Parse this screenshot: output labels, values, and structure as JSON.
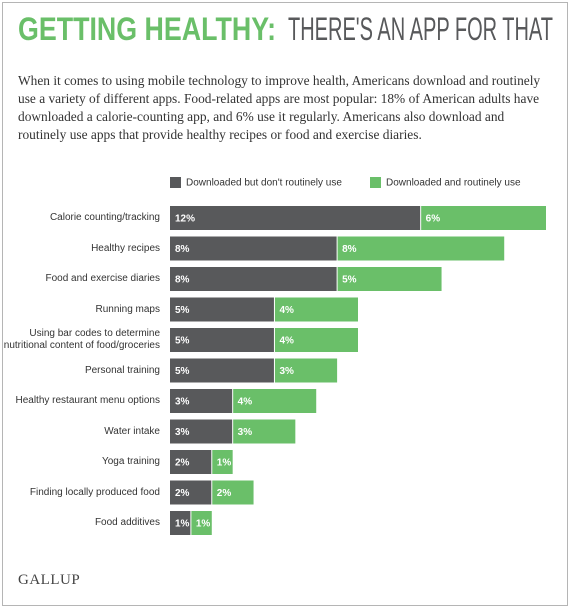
{
  "chart_data": {
    "type": "stacked-bar",
    "title": "GETTING HEALTHY:",
    "subtitle": "THERE'S AN APP FOR THAT",
    "description": "When it comes to using mobile technology to improve health, Americans download and routinely use a variety of different apps. Food-related apps are most popular: 18% of American adults have downloaded a calorie-counting app, and 6% use it regularly. Americans also download and routinely use apps that provide healthy recipes or food and exercise diaries.",
    "categories": [
      "Calorie counting/tracking",
      "Healthy recipes",
      "Food and exercise diaries",
      "Running maps",
      "Using bar codes to determine nutritional content of food/groceries",
      "Personal training",
      "Healthy restaurant menu options",
      "Water intake",
      "Yoga training",
      "Finding locally produced food",
      "Food additives"
    ],
    "series": [
      {
        "name": "Downloaded but don't routinely use",
        "color": "#58595b",
        "values": [
          12,
          8,
          8,
          5,
          5,
          5,
          3,
          3,
          2,
          2,
          1
        ],
        "value_labels": [
          "12%",
          "8%",
          "8%",
          "5%",
          "5%",
          "5%",
          "3%",
          "3%",
          "2%",
          "2%",
          "1%"
        ]
      },
      {
        "name": "Downloaded and routinely use",
        "color": "#6abf69",
        "values": [
          6,
          8,
          5,
          4,
          4,
          3,
          4,
          3,
          1,
          2,
          1
        ],
        "value_labels": [
          "6%",
          "8%",
          "5%",
          "4%",
          "4%",
          "3%",
          "4%",
          "3%",
          "1%",
          "2%",
          "1%"
        ]
      }
    ],
    "title_color": "#6abf69",
    "subtitle_color": "#58595b",
    "source": "GALLUP"
  }
}
